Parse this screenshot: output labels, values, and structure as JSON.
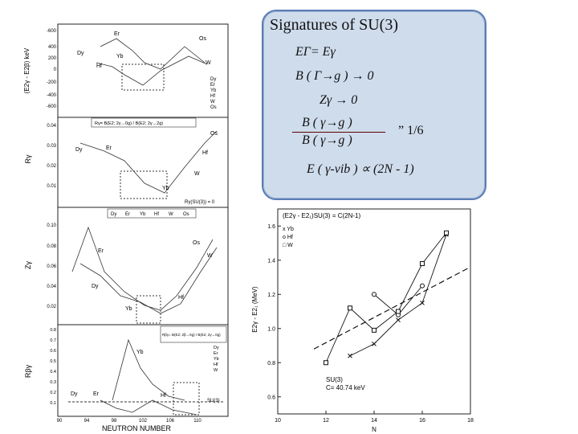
{
  "callout": {
    "title": "Signatures of SU(3)",
    "eq1": "EΓ= Eγ",
    "eq2": "B ( Γ→g ) → 0",
    "eq3": "Zγ → 0",
    "eq4_num": "B ( γ→g )",
    "eq4_den": "B ( γ→g )",
    "eq4_rhs": "” 1/6",
    "eq5": "E ( γ-vib ) ∝ (2N - 1)"
  },
  "left_figure": {
    "panel1": {
      "ylabel": "(E2γ - E2β) keV",
      "ticks": [
        "-600",
        "400",
        "200",
        "0",
        "-200",
        "-400",
        "-600"
      ],
      "legend": [
        "Dy",
        "Er",
        "Yb",
        "Hf",
        "W",
        "Os"
      ],
      "labels": [
        "Er",
        "Os",
        "Dy",
        "Yb",
        "Hf",
        "W"
      ]
    },
    "panel2": {
      "ylabel": "Rγ",
      "ticks": [
        "0.04",
        "0.03",
        "0.02",
        "0.01"
      ],
      "title": "Rγ= B(E2; 2γ→0g) / B(E2; 2γ→2g)",
      "su3_note": "Rγ(SU(3)) = 0",
      "labels": [
        "Er",
        "Dy",
        "Os",
        "Hf",
        "W",
        "Yb"
      ]
    },
    "panel3": {
      "ylabel": "Zγ",
      "ticks": [
        "0.10",
        "0.08",
        "0.06",
        "0.04",
        "0.02"
      ],
      "legend": [
        "Dy",
        "Er",
        "Yb",
        "Hf",
        "W",
        "Os"
      ],
      "labels": [
        "Er",
        "Dy",
        "Os",
        "W",
        "Yb",
        "Hf"
      ]
    },
    "panel4": {
      "ylabel": "Rβγ",
      "ticks": [
        "0.8",
        "0.7",
        "0.6",
        "0.5",
        "0.4",
        "0.3",
        "0.2",
        "0.1"
      ],
      "title": "Rβγ= B(E2; 2β→0g) / B(E2; 2γ→0g)",
      "legend": [
        "Dy",
        "Er",
        "Yb",
        "Hf",
        "W"
      ],
      "labels": [
        "Yb",
        "Dy",
        "Er",
        "Hf",
        "SU(3)"
      ]
    },
    "xaxis": {
      "label": "NEUTRON NUMBER",
      "ticks": [
        "90",
        "94",
        "98",
        "102",
        "106",
        "110"
      ]
    }
  },
  "right_figure": {
    "formula": "(E2γ - E2₁)SU(3) = C(2N-1)",
    "ylabel": "E2γ - E2₁ (MeV)",
    "xlabel": "N",
    "xticks": [
      "10",
      "12",
      "14",
      "16",
      "18"
    ],
    "yticks": [
      "1.6",
      "1.4",
      "1.2",
      "1.0",
      "0.8",
      "0.6"
    ],
    "legend": [
      "x  Yb",
      "o  Hf",
      "□  W"
    ],
    "su3_label": "SU(3)",
    "su3_c": "C= 40.74 keV"
  },
  "chart_data": {
    "type": "scatter",
    "x": [
      11.6,
      12,
      13,
      13.5,
      14,
      15,
      15.5,
      16,
      16.5,
      17
    ],
    "xlabel": "N",
    "ylabel": "E2γ - E2₁ (MeV)",
    "xlim": [
      10,
      18
    ],
    "ylim": [
      0.5,
      1.7
    ],
    "series": [
      {
        "name": "Yb",
        "x": [
          13,
          14,
          15,
          16,
          17
        ],
        "values": [
          0.84,
          0.91,
          1.05,
          1.15,
          1.55
        ]
      },
      {
        "name": "Hf",
        "x": [
          14,
          15,
          16
        ],
        "values": [
          1.2,
          1.08,
          1.25
        ]
      },
      {
        "name": "W",
        "x": [
          12,
          13,
          14,
          15,
          16,
          17
        ],
        "values": [
          0.8,
          1.12,
          0.99,
          1.1,
          1.38,
          1.56
        ]
      },
      {
        "name": "SU(3)",
        "x": [
          11.5,
          18
        ],
        "values": [
          0.88,
          1.36
        ]
      }
    ]
  }
}
